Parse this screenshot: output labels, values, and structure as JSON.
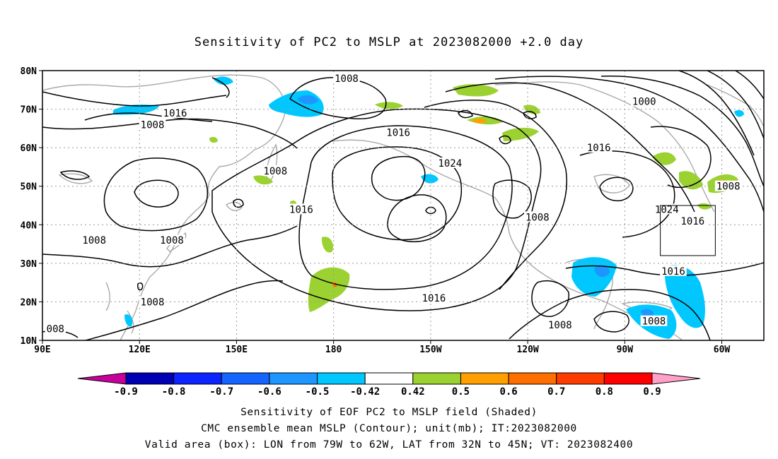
{
  "title": "Sensitivity of PC2 to MSLP at 2023082000 +2.0 day",
  "map": {
    "lat_labels": [
      "80N",
      "70N",
      "60N",
      "50N",
      "40N",
      "30N",
      "20N",
      "10N"
    ],
    "lon_labels": [
      "90E",
      "120E",
      "150E",
      "180",
      "150W",
      "120W",
      "90W",
      "60W"
    ],
    "lon_range": [
      90,
      313
    ],
    "lat_range": [
      10,
      80
    ],
    "contour_labels": [
      {
        "text": "1008",
        "lon": 184,
        "lat": 78
      },
      {
        "text": "1000",
        "lon": 276,
        "lat": 72
      },
      {
        "text": "1016",
        "lon": 131,
        "lat": 69
      },
      {
        "text": "1008",
        "lon": 124,
        "lat": 66
      },
      {
        "text": "1016",
        "lon": 200,
        "lat": 64
      },
      {
        "text": "1016",
        "lon": 262,
        "lat": 60
      },
      {
        "text": "1024",
        "lon": 216,
        "lat": 56
      },
      {
        "text": "1008",
        "lon": 162,
        "lat": 54
      },
      {
        "text": "1008",
        "lon": 302,
        "lat": 50
      },
      {
        "text": "1016",
        "lon": 170,
        "lat": 44
      },
      {
        "text": "1024",
        "lon": 283,
        "lat": 44
      },
      {
        "text": "1008",
        "lon": 243,
        "lat": 42
      },
      {
        "text": "1016",
        "lon": 291,
        "lat": 41
      },
      {
        "text": "1008",
        "lon": 106,
        "lat": 36
      },
      {
        "text": "1008",
        "lon": 130,
        "lat": 36
      },
      {
        "text": "1016",
        "lon": 285,
        "lat": 28
      },
      {
        "text": "1008",
        "lon": 124,
        "lat": 20
      },
      {
        "text": "1016",
        "lon": 211,
        "lat": 21
      },
      {
        "text": "1008",
        "lon": 279,
        "lat": 15
      },
      {
        "text": "1008",
        "lon": 250,
        "lat": 14
      },
      {
        "text": "008",
        "lon": 94,
        "lat": 13
      }
    ],
    "valid_box": {
      "lon_min": 281,
      "lon_max": 298,
      "lat_min": 32,
      "lat_max": 45
    }
  },
  "colorbar": {
    "labels": [
      "-0.9",
      "-0.8",
      "-0.7",
      "-0.6",
      "-0.5",
      "-0.42",
      "0.42",
      "0.5",
      "0.6",
      "0.7",
      "0.8",
      "0.9"
    ],
    "colors": [
      "#0000b4",
      "#0c24ff",
      "#1464ff",
      "#1e96ff",
      "#00c8ff",
      "#ffffff",
      "#9bd232",
      "#ffa000",
      "#ff6e00",
      "#ff3c00",
      "#ff0000"
    ],
    "low_extend_color": "#c8009b",
    "high_extend_color": "#ffa0c8"
  },
  "captions": {
    "line1": "Sensitivity of EOF PC2 to MSLP field (Shaded)",
    "line2": "CMC ensemble mean MSLP (Contour); unit(mb); IT:2023082000",
    "line3": "Valid area (box): LON from 79W to 62W, LAT from 32N to 45N; VT: 2023082400"
  }
}
